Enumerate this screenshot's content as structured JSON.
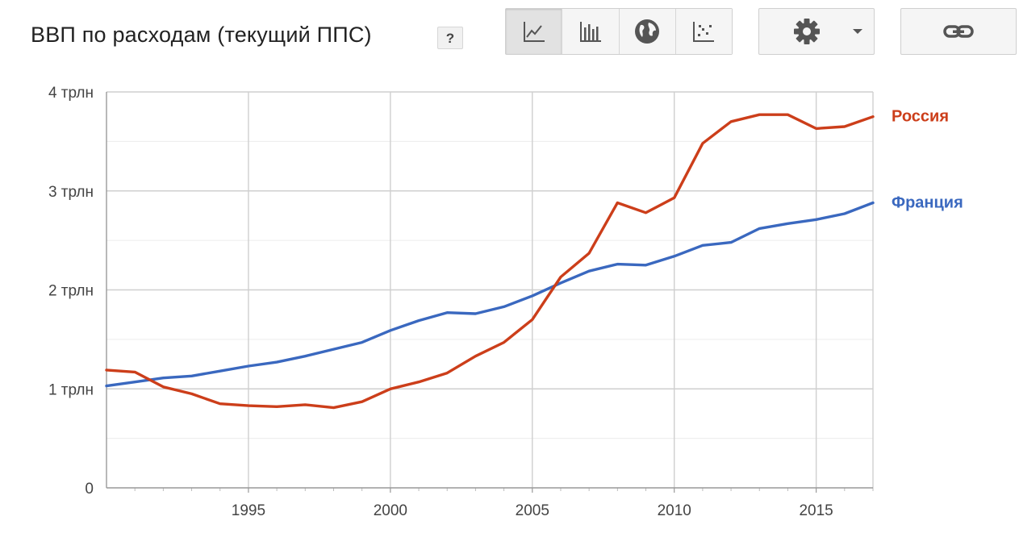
{
  "header": {
    "title": "ВВП по расходам (текущий ППС)",
    "help_label": "?"
  },
  "toolbar": {
    "chart_types": [
      {
        "name": "line-chart-icon",
        "active": true
      },
      {
        "name": "bar-chart-icon",
        "active": false
      },
      {
        "name": "map-globe-icon",
        "active": false
      },
      {
        "name": "scatter-chart-icon",
        "active": false
      }
    ],
    "settings_icon": "gear-icon",
    "dropdown_icon": "caret-down-icon",
    "link_icon": "link-icon"
  },
  "chart_data": {
    "type": "line",
    "title": "ВВП по расходам (текущий ППС)",
    "xlim": [
      1990,
      2017
    ],
    "ylim": [
      0,
      4
    ],
    "x_ticks": [
      1995,
      2000,
      2005,
      2010,
      2015
    ],
    "x_tick_labels": [
      "1995",
      "2000",
      "2005",
      "2010",
      "2015"
    ],
    "y_ticks": [
      0,
      1,
      2,
      3,
      4
    ],
    "y_tick_labels": [
      "0",
      "1 трлн",
      "2 трлн",
      "3 трлн",
      "4 трлн"
    ],
    "grid": true,
    "legend_position": "right-inline",
    "x": [
      1990,
      1991,
      1992,
      1993,
      1994,
      1995,
      1996,
      1997,
      1998,
      1999,
      2000,
      2001,
      2002,
      2003,
      2004,
      2005,
      2006,
      2007,
      2008,
      2009,
      2010,
      2011,
      2012,
      2013,
      2014,
      2015,
      2016,
      2017
    ],
    "series": [
      {
        "name": "Россия",
        "color": "#cc3e1a",
        "values": [
          1.19,
          1.17,
          1.02,
          0.95,
          0.85,
          0.83,
          0.82,
          0.84,
          0.81,
          0.87,
          1.0,
          1.07,
          1.16,
          1.33,
          1.47,
          1.7,
          2.13,
          2.37,
          2.88,
          2.78,
          2.93,
          3.48,
          3.7,
          3.77,
          3.77,
          3.63,
          3.65,
          3.75
        ]
      },
      {
        "name": "Франция",
        "color": "#3a68bf",
        "values": [
          1.03,
          1.07,
          1.11,
          1.13,
          1.18,
          1.23,
          1.27,
          1.33,
          1.4,
          1.47,
          1.59,
          1.69,
          1.77,
          1.76,
          1.83,
          1.94,
          2.07,
          2.19,
          2.26,
          2.25,
          2.34,
          2.45,
          2.48,
          2.62,
          2.67,
          2.71,
          2.77,
          2.88
        ]
      }
    ]
  }
}
